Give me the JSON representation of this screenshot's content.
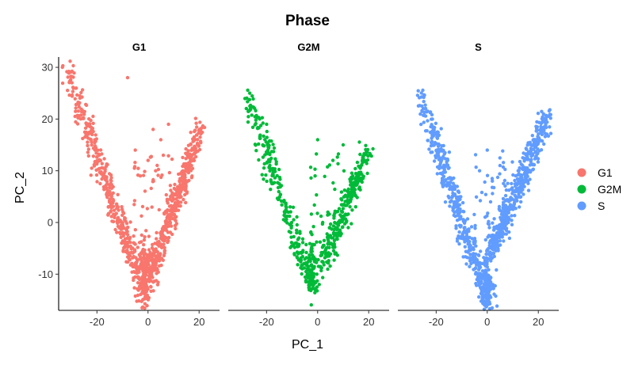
{
  "chart_data": {
    "type": "scatter",
    "title": "Phase",
    "xlabel": "PC_1",
    "ylabel": "PC_2",
    "xlim": [
      -35,
      28
    ],
    "ylim": [
      -17,
      32
    ],
    "x_ticks": [
      -20,
      0,
      20
    ],
    "y_ticks": [
      -10,
      0,
      10,
      20,
      30
    ],
    "grid": false,
    "legend_position": "right",
    "panels": [
      {
        "name": "G1",
        "color": "#F8766D",
        "left_arm": {
          "start": [
            -32,
            30
          ],
          "end": [
            -1,
            -14
          ]
        },
        "right_arm": {
          "start": [
            21,
            19
          ],
          "end": [
            1,
            -10
          ]
        },
        "outliers": [
          [
            -8,
            28
          ],
          [
            2,
            18
          ],
          [
            5,
            16
          ],
          [
            -5,
            14
          ],
          [
            0,
            12
          ],
          [
            8,
            19
          ],
          [
            -3,
            9
          ],
          [
            3,
            10
          ],
          [
            6,
            13
          ]
        ]
      },
      {
        "name": "G2M",
        "color": "#00BA38",
        "left_arm": {
          "start": [
            -28,
            25
          ],
          "end": [
            -2,
            -13
          ]
        },
        "right_arm": {
          "start": [
            20,
            14
          ],
          "end": [
            2,
            -8
          ]
        },
        "outliers": [
          [
            0,
            16
          ],
          [
            10,
            15
          ],
          [
            -1,
            9
          ],
          [
            6,
            12
          ],
          [
            4,
            2
          ],
          [
            2,
            0
          ]
        ]
      },
      {
        "name": "S",
        "color": "#619CFF",
        "left_arm": {
          "start": [
            -26,
            24
          ],
          "end": [
            0,
            -15
          ]
        },
        "right_arm": {
          "start": [
            24,
            21
          ],
          "end": [
            1,
            -6
          ]
        },
        "outliers": [
          [
            22,
            21
          ],
          [
            0,
            14
          ],
          [
            -3,
            10
          ],
          [
            5,
            11
          ],
          [
            2,
            8
          ]
        ]
      }
    ],
    "legend": [
      {
        "label": "G1",
        "color": "#F8766D"
      },
      {
        "label": "G2M",
        "color": "#00BA38"
      },
      {
        "label": "S",
        "color": "#619CFF"
      }
    ]
  }
}
